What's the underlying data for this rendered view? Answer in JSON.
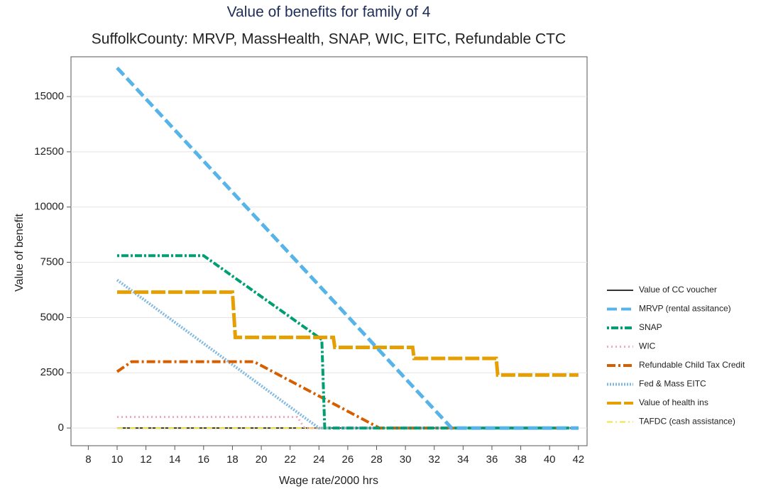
{
  "chart_data": {
    "type": "line",
    "title": "Value of benefits for family of 4",
    "subtitle": "SuffolkCounty: MRVP, MassHealth, SNAP, WIC, EITC, Refundable CTC",
    "x_label": "Wage rate/2000 hrs",
    "y_label": "Value of benefit",
    "x": [
      10,
      11,
      16,
      18,
      18.2,
      19.5,
      22.5,
      23,
      24,
      24.2,
      24.4,
      25,
      25.1,
      28.2,
      30.5,
      30.6,
      33.2,
      36.3,
      36.4,
      42
    ],
    "xlim": [
      6.8,
      42.6
    ],
    "xticks": [
      8,
      10,
      12,
      14,
      16,
      18,
      20,
      22,
      24,
      26,
      28,
      30,
      32,
      34,
      36,
      38,
      40,
      42
    ],
    "ylim": [
      -800,
      16800
    ],
    "yticks": [
      0,
      2500,
      5000,
      7500,
      10000,
      12500,
      15000
    ],
    "grid": true,
    "legend": "right",
    "series": [
      {
        "name": "Value of CC voucher",
        "color": "#333333",
        "dash": "none",
        "width": 2,
        "values": [
          0,
          0,
          0,
          0,
          0,
          0,
          0,
          0,
          0,
          0,
          0,
          0,
          0,
          0,
          0,
          0,
          0,
          0,
          0,
          0
        ]
      },
      {
        "name": "MRVP (rental assitance)",
        "color": "#56b4e9",
        "dash": "14,6",
        "width": 5,
        "values": [
          16300,
          15597,
          12082,
          10676,
          10535,
          9621,
          7512,
          7161,
          6458,
          6317,
          6177,
          5755,
          5685,
          3505,
          1888,
          1818,
          0,
          0,
          0,
          0
        ]
      },
      {
        "name": "SNAP",
        "color": "#009e73",
        "dash": "3,3,10,3",
        "width": 4,
        "values": [
          7800,
          7800,
          7800,
          6874,
          6781,
          6180,
          4790,
          4560,
          4097,
          4000,
          0,
          0,
          0,
          0,
          0,
          0,
          0,
          0,
          0,
          0
        ]
      },
      {
        "name": "WIC",
        "color": "#f2a6c8",
        "dash": "2,4",
        "width": 3,
        "values": [
          500,
          500,
          500,
          500,
          500,
          500,
          500,
          0,
          0,
          0,
          0,
          0,
          0,
          0,
          0,
          0,
          0,
          0,
          0,
          0
        ]
      },
      {
        "name": "Refundable Child Tax Credit",
        "color": "#d55e00",
        "dash": "12,4,3,4",
        "width": 4,
        "values": [
          2550,
          3000,
          3000,
          3000,
          3000,
          3000,
          1965,
          1793,
          1448,
          1379,
          1310,
          1103,
          1069,
          0,
          0,
          0,
          0,
          0,
          0,
          0
        ]
      },
      {
        "name": "Fed & Mass EITC",
        "color": "#7fb8e0",
        "dash": "2,2",
        "width": 4,
        "values": [
          6700,
          6221,
          3826,
          2868,
          2772,
          2150,
          713,
          473,
          0,
          0,
          0,
          0,
          0,
          0,
          0,
          0,
          0,
          0,
          0,
          0
        ]
      },
      {
        "name": "Value of health ins",
        "color": "#e69f00",
        "dash": "20,4",
        "width": 5,
        "values": [
          6150,
          6150,
          6150,
          6150,
          4100,
          4100,
          4100,
          4100,
          4100,
          4100,
          4100,
          4100,
          3650,
          3650,
          3650,
          3150,
          3150,
          3150,
          2400,
          2400
        ]
      },
      {
        "name": "TAFDC (cash assistance)",
        "color": "#f0e442",
        "dash": "8,4,2,4",
        "width": 2,
        "values": [
          0,
          0,
          0,
          0,
          0,
          0,
          0,
          0,
          0,
          0,
          0,
          0,
          0,
          0,
          0,
          0,
          0,
          0,
          0,
          0
        ]
      }
    ]
  }
}
